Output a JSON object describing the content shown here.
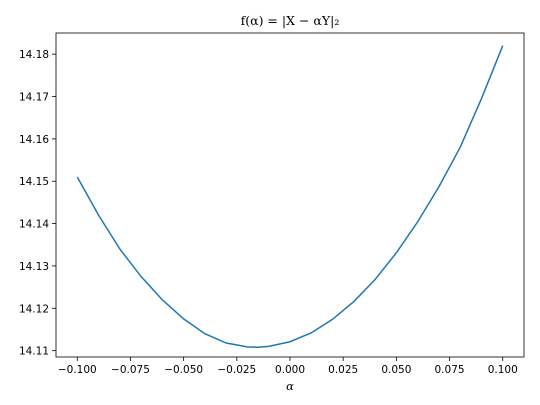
{
  "chart_data": {
    "type": "line",
    "title": "f(α) = |X − αY|₂",
    "xlabel": "α",
    "ylabel": "",
    "xlim": [
      -0.11,
      0.11
    ],
    "ylim": [
      14.1085,
      14.185
    ],
    "grid": false,
    "legend": "none",
    "xticks": [
      -0.1,
      -0.075,
      -0.05,
      -0.025,
      0.0,
      0.025,
      0.05,
      0.075,
      0.1
    ],
    "xtick_labels": [
      "−0.100",
      "−0.075",
      "−0.050",
      "−0.025",
      "0.000",
      "0.025",
      "0.050",
      "0.075",
      "0.100"
    ],
    "yticks": [
      14.11,
      14.12,
      14.13,
      14.14,
      14.15,
      14.16,
      14.17,
      14.18
    ],
    "ytick_labels": [
      "14.11",
      "14.12",
      "14.13",
      "14.14",
      "14.15",
      "14.16",
      "14.17",
      "14.18"
    ],
    "series": [
      {
        "color": "#1f77b4",
        "x": [
          -0.1,
          -0.09,
          -0.08,
          -0.07,
          -0.06,
          -0.05,
          -0.04,
          -0.03,
          -0.02,
          -0.015,
          -0.01,
          0.0,
          0.01,
          0.02,
          0.03,
          0.04,
          0.05,
          0.06,
          0.07,
          0.08,
          0.09,
          0.1
        ],
        "y": [
          14.151,
          14.142,
          14.134,
          14.1275,
          14.122,
          14.1175,
          14.114,
          14.1118,
          14.1109,
          14.1108,
          14.111,
          14.1121,
          14.1142,
          14.1174,
          14.1216,
          14.1268,
          14.1331,
          14.1404,
          14.1487,
          14.158,
          14.1695,
          14.182
        ]
      }
    ]
  }
}
